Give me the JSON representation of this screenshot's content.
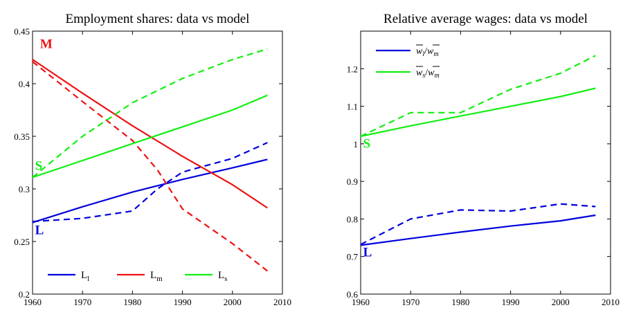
{
  "chart_data": [
    {
      "type": "line",
      "title": "Employment shares: data vs model",
      "xlim": [
        1960,
        2010
      ],
      "ylim": [
        0.2,
        0.45
      ],
      "xticks": [
        1960,
        1970,
        1980,
        1990,
        2000,
        2010
      ],
      "yticks": [
        0.2,
        0.25,
        0.3,
        0.35,
        0.4,
        0.45
      ],
      "xtick_labels": [
        "1960",
        "1970",
        "1980",
        "1990",
        "2000",
        "2010"
      ],
      "ytick_labels": [
        "0.2",
        "0.25",
        "0.3",
        "0.35",
        "0.4",
        "0.45"
      ],
      "grid": false,
      "legend": {
        "placement": "bottom",
        "entries": [
          {
            "base": "L",
            "sub": "l",
            "color": "#0000dd"
          },
          {
            "base": "L",
            "sub": "m",
            "color": "#ee1111"
          },
          {
            "base": "L",
            "sub": "s",
            "color": "#11ee11"
          }
        ]
      },
      "annotations": [
        {
          "text": "M",
          "x": 1961.5,
          "y": 0.434,
          "color": "#ee1111"
        },
        {
          "text": "S",
          "x": 1960.5,
          "y": 0.318,
          "color": "#11ee11"
        },
        {
          "text": "L",
          "x": 1960.5,
          "y": 0.257,
          "color": "#0000dd"
        }
      ],
      "series": [
        {
          "key": "model_l",
          "style": "solid",
          "color": "#0000dd",
          "x": [
            1960,
            1970,
            1980,
            1990,
            2000,
            2007
          ],
          "y": [
            0.268,
            0.283,
            0.297,
            0.309,
            0.32,
            0.328
          ]
        },
        {
          "key": "data_l",
          "style": "dashed",
          "color": "#0000dd",
          "x": [
            1960,
            1970,
            1980,
            1985,
            1990,
            2000,
            2007
          ],
          "y": [
            0.269,
            0.272,
            0.279,
            0.3,
            0.316,
            0.329,
            0.344
          ]
        },
        {
          "key": "model_m",
          "style": "solid",
          "color": "#ee1111",
          "x": [
            1960,
            1970,
            1980,
            1990,
            2000,
            2007
          ],
          "y": [
            0.423,
            0.391,
            0.36,
            0.331,
            0.304,
            0.282
          ]
        },
        {
          "key": "data_m",
          "style": "dashed",
          "color": "#ee1111",
          "x": [
            1960,
            1970,
            1980,
            1985,
            1990,
            2000,
            2007
          ],
          "y": [
            0.421,
            0.383,
            0.346,
            0.318,
            0.281,
            0.248,
            0.222
          ]
        },
        {
          "key": "model_s",
          "style": "solid",
          "color": "#11ee11",
          "x": [
            1960,
            1970,
            1980,
            1990,
            2000,
            2007
          ],
          "y": [
            0.311,
            0.327,
            0.343,
            0.359,
            0.375,
            0.389
          ]
        },
        {
          "key": "data_s",
          "style": "dashed",
          "color": "#11ee11",
          "x": [
            1960,
            1970,
            1980,
            1990,
            2000,
            2007
          ],
          "y": [
            0.311,
            0.35,
            0.382,
            0.405,
            0.423,
            0.433
          ]
        }
      ]
    },
    {
      "type": "line",
      "title": "Relative average wages: data vs model",
      "xlim": [
        1960,
        2010
      ],
      "ylim": [
        0.6,
        1.3
      ],
      "xticks": [
        1960,
        1970,
        1980,
        1990,
        2000,
        2010
      ],
      "yticks": [
        0.6,
        0.7,
        0.8,
        0.9,
        1.0,
        1.1,
        1.2
      ],
      "xtick_labels": [
        "1960",
        "1970",
        "1980",
        "1990",
        "2000",
        "2010"
      ],
      "ytick_labels": [
        "0.6",
        "0.7",
        "0.8",
        "0.9",
        "1",
        "1.1",
        "1.2"
      ],
      "grid": false,
      "legend": {
        "placement": "top-left",
        "entries": [
          {
            "num": "w",
            "num_sub": "l",
            "den": "w",
            "den_sub": "m",
            "color": "#0000dd"
          },
          {
            "num": "w",
            "num_sub": "s",
            "den": "w",
            "den_sub": "m",
            "color": "#11ee11"
          }
        ]
      },
      "annotations": [
        {
          "text": "S",
          "x": 1960.5,
          "y": 0.99,
          "color": "#11ee11"
        },
        {
          "text": "L",
          "x": 1960.5,
          "y": 0.7,
          "color": "#0000dd"
        }
      ],
      "series": [
        {
          "key": "model_wl",
          "style": "solid",
          "color": "#0000dd",
          "x": [
            1960,
            1970,
            1980,
            1990,
            2000,
            2007
          ],
          "y": [
            0.73,
            0.748,
            0.765,
            0.781,
            0.795,
            0.81
          ]
        },
        {
          "key": "data_wl",
          "style": "dashed",
          "color": "#0000dd",
          "x": [
            1960,
            1970,
            1980,
            1990,
            2000,
            2007
          ],
          "y": [
            0.732,
            0.8,
            0.824,
            0.821,
            0.84,
            0.833
          ]
        },
        {
          "key": "model_ws",
          "style": "solid",
          "color": "#11ee11",
          "x": [
            1960,
            1970,
            1980,
            1990,
            2000,
            2007
          ],
          "y": [
            1.02,
            1.048,
            1.074,
            1.1,
            1.126,
            1.148
          ]
        },
        {
          "key": "data_ws",
          "style": "dashed",
          "color": "#11ee11",
          "x": [
            1960,
            1970,
            1980,
            1990,
            2000,
            2007
          ],
          "y": [
            1.02,
            1.083,
            1.083,
            1.145,
            1.188,
            1.235
          ]
        }
      ]
    }
  ]
}
